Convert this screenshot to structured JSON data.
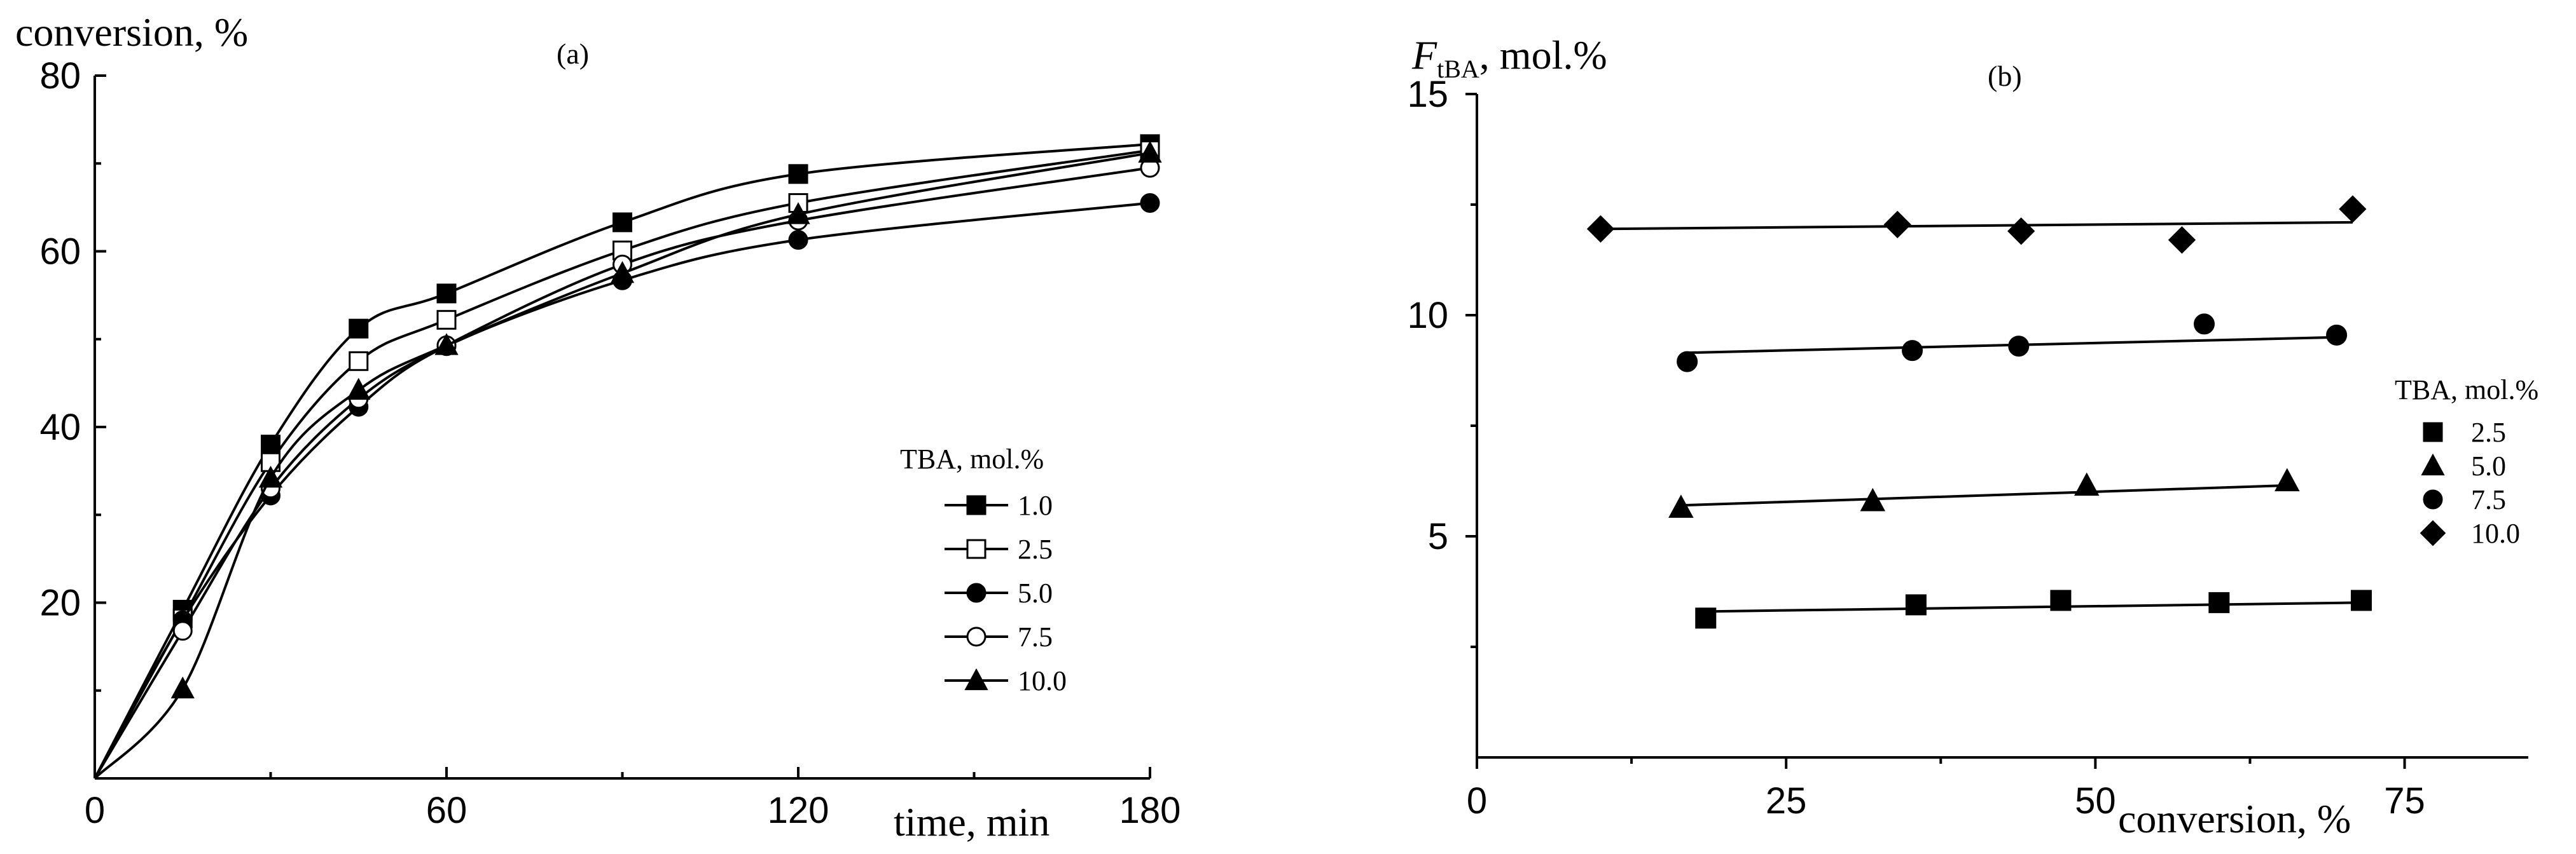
{
  "chart_data": [
    {
      "panel": "(a)",
      "type": "line",
      "title": "",
      "ylabel": "conversion, %",
      "xlabel": "time, min",
      "x": [
        0,
        15,
        30,
        45,
        60,
        90,
        120,
        180
      ],
      "xlim": [
        0,
        180
      ],
      "ylim": [
        0,
        80
      ],
      "xticks": [
        "0",
        "60",
        "120",
        "180"
      ],
      "yticks": [
        "20",
        "40",
        "60",
        "80"
      ],
      "legend_title": "TBA, mol.%",
      "legend_position": "right",
      "series": [
        {
          "name": "1.0",
          "marker": "square-filled",
          "values": [
            0,
            19.2,
            38.0,
            51.2,
            55.2,
            63.3,
            68.8,
            72.2
          ]
        },
        {
          "name": "2.5",
          "marker": "square-open",
          "values": [
            0,
            18.2,
            36.0,
            47.5,
            52.2,
            60.1,
            65.5,
            71.5
          ]
        },
        {
          "name": "5.0",
          "marker": "circle-filled",
          "values": [
            0,
            18.0,
            32.2,
            42.3,
            49.2,
            56.7,
            61.3,
            65.5
          ]
        },
        {
          "name": "7.5",
          "marker": "circle-open",
          "values": [
            0,
            16.8,
            33.0,
            43.2,
            49.3,
            58.5,
            63.5,
            69.5
          ]
        },
        {
          "name": "10.0",
          "marker": "triangle-filled",
          "values": [
            0,
            10.2,
            34.2,
            44.2,
            49.3,
            57.5,
            64.2,
            71.2
          ]
        }
      ]
    },
    {
      "panel": "(b)",
      "type": "scatter",
      "title": "",
      "ylabel_main": "F",
      "ylabel_sub": "tBA",
      "ylabel_rest": ", mol.%",
      "xlabel": "conversion, %",
      "xlim": [
        0,
        85
      ],
      "ylim": [
        0,
        15
      ],
      "xticks": [
        "0",
        "25",
        "50",
        "75"
      ],
      "xtick_values": [
        0,
        25,
        50,
        75
      ],
      "yticks": [
        "5",
        "10",
        "15"
      ],
      "ytick_values": [
        5,
        10,
        15
      ],
      "legend_title": "TBA, mol.%",
      "legend_position": "right",
      "series": [
        {
          "name": "2.5",
          "marker": "square-filled",
          "points": [
            [
              18.5,
              3.15
            ],
            [
              35.5,
              3.45
            ],
            [
              47.2,
              3.55
            ],
            [
              60.0,
              3.5
            ],
            [
              71.5,
              3.55
            ]
          ],
          "fit": [
            [
              18.5,
              3.3
            ],
            [
              71.5,
              3.5
            ]
          ]
        },
        {
          "name": "5.0",
          "marker": "triangle-filled",
          "points": [
            [
              16.5,
              5.65
            ],
            [
              32.0,
              5.8
            ],
            [
              49.3,
              6.15
            ],
            [
              65.5,
              6.25
            ]
          ],
          "fit": [
            [
              16.5,
              5.7
            ],
            [
              65.5,
              6.15
            ]
          ]
        },
        {
          "name": "7.5",
          "marker": "circle-filled",
          "points": [
            [
              17.0,
              8.95
            ],
            [
              35.2,
              9.2
            ],
            [
              43.8,
              9.3
            ],
            [
              58.8,
              9.8
            ],
            [
              69.5,
              9.55
            ]
          ],
          "fit": [
            [
              17.0,
              9.15
            ],
            [
              69.5,
              9.5
            ]
          ]
        },
        {
          "name": "10.0",
          "marker": "diamond-filled",
          "points": [
            [
              10.0,
              11.95
            ],
            [
              34.0,
              12.05
            ],
            [
              44.0,
              11.9
            ],
            [
              57.0,
              11.7
            ],
            [
              70.8,
              12.4
            ]
          ],
          "fit": [
            [
              10.0,
              11.95
            ],
            [
              70.8,
              12.1
            ]
          ]
        }
      ]
    }
  ]
}
